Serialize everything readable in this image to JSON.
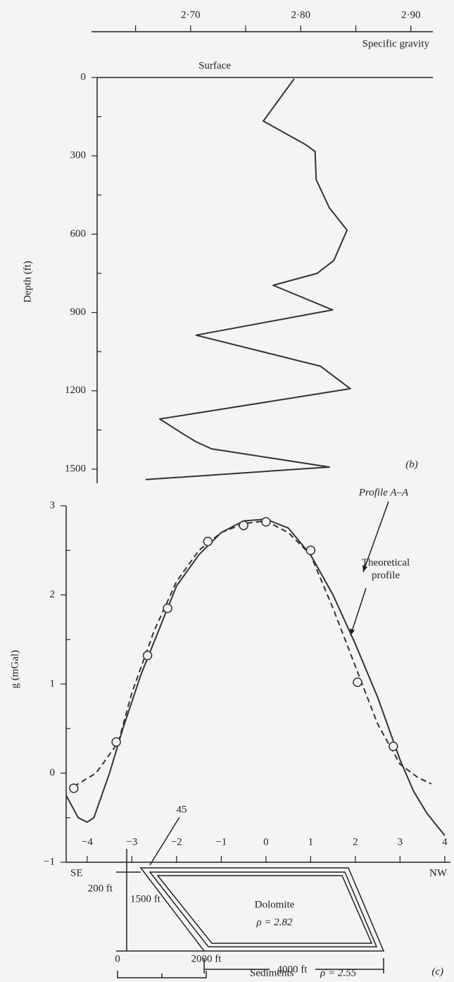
{
  "chart_data": [
    {
      "type": "line",
      "title": "Surface",
      "xlabel": "Specific gravity",
      "ylabel": "Depth (ft)",
      "panel_label": "(b)",
      "xlim": [
        2.61,
        2.92
      ],
      "xticks": [
        {
          "value": 2.7,
          "label": "2·70"
        },
        {
          "value": 2.8,
          "label": "2·80"
        },
        {
          "value": 2.9,
          "label": "2·90"
        }
      ],
      "xminor": [
        2.65,
        2.75,
        2.85
      ],
      "ylim": [
        0,
        1550
      ],
      "yticks": [
        0,
        300,
        600,
        900,
        1200,
        1500
      ],
      "yminor": [
        150,
        450,
        750,
        1050,
        1350
      ],
      "y_inverted": true,
      "series": [
        {
          "color": "#333333",
          "x": [
            2.794,
            2.766,
            2.804,
            2.813,
            2.814,
            2.826,
            2.842,
            2.83,
            2.815,
            2.775,
            2.829,
            2.705,
            2.818,
            2.845,
            2.672,
            2.695,
            2.705,
            2.719,
            2.826,
            2.659
          ],
          "values": [
            5,
            167,
            256,
            283,
            391,
            499,
            585,
            701,
            750,
            796,
            890,
            987,
            1106,
            1192,
            1308,
            1370,
            1395,
            1422,
            1492,
            1540
          ]
        }
      ]
    },
    {
      "type": "line",
      "ylabel": "g (mGal)",
      "panel_label": "(c)",
      "xlim": [
        -4.47,
        4.05
      ],
      "xticks": [
        {
          "value": -4,
          "label": "−4"
        },
        {
          "value": -3,
          "label": "−3"
        },
        {
          "value": -2,
          "label": "−2"
        },
        {
          "value": -1,
          "label": "−1"
        },
        0,
        1,
        2,
        3,
        4
      ],
      "ylim": [
        -1,
        3
      ],
      "yticks": [
        {
          "value": -1,
          "label": "−1"
        },
        0,
        1,
        2,
        3
      ],
      "yminor": [
        -0.5,
        0.5,
        1.5,
        2.5
      ],
      "series": [
        {
          "name": "Profile A–A",
          "color": "#333333",
          "style": "solid",
          "x": [
            -4.47,
            -4.2,
            -4,
            -3.85,
            -3.5,
            -3.2,
            -2.8,
            -2.4,
            -2,
            -1.5,
            -1,
            -0.5,
            0,
            0.5,
            1,
            1.5,
            2,
            2.5,
            3,
            3.3,
            3.6,
            4
          ],
          "values": [
            -0.25,
            -0.5,
            -0.55,
            -0.5,
            0,
            0.5,
            1.1,
            1.6,
            2.1,
            2.45,
            2.7,
            2.83,
            2.85,
            2.75,
            2.45,
            2,
            1.45,
            0.85,
            0.15,
            -0.2,
            -0.45,
            -0.7
          ]
        },
        {
          "name": "Theoretical profile",
          "color": "#333333",
          "style": "dashed",
          "x": [
            -4.3,
            -3.8,
            -3.3,
            -3,
            -2.5,
            -2,
            -1.5,
            -1,
            -0.5,
            0,
            0.5,
            1,
            1.5,
            2,
            2.5,
            3,
            3.4,
            3.7
          ],
          "values": [
            -0.15,
            0,
            0.35,
            0.9,
            1.6,
            2.15,
            2.5,
            2.7,
            2.8,
            2.83,
            2.7,
            2.45,
            1.85,
            1.2,
            0.55,
            0.1,
            -0.05,
            -0.12
          ]
        },
        {
          "color": "#333333",
          "style": "circle",
          "x": [
            -4.3,
            -3.35,
            -2.65,
            -2.2,
            -1.3,
            -0.5,
            0,
            1,
            2.05,
            2.85
          ],
          "values": [
            -0.17,
            0.35,
            1.32,
            1.85,
            2.6,
            2.78,
            2.82,
            2.5,
            1.02,
            0.3
          ]
        }
      ],
      "angle_label": "45",
      "left_label": "SE",
      "right_label": "NW",
      "thickness_label": "200 ft",
      "depth_label": "1500 ft",
      "body_label": "Dolomite",
      "density_label": "ρ = 2.82",
      "width_label": "4000 ft",
      "scale_zero": "0",
      "scale_label": "2000 ft",
      "sediments_label": "Sediments",
      "sediments_density": "ρ̄ = 2.55"
    }
  ]
}
